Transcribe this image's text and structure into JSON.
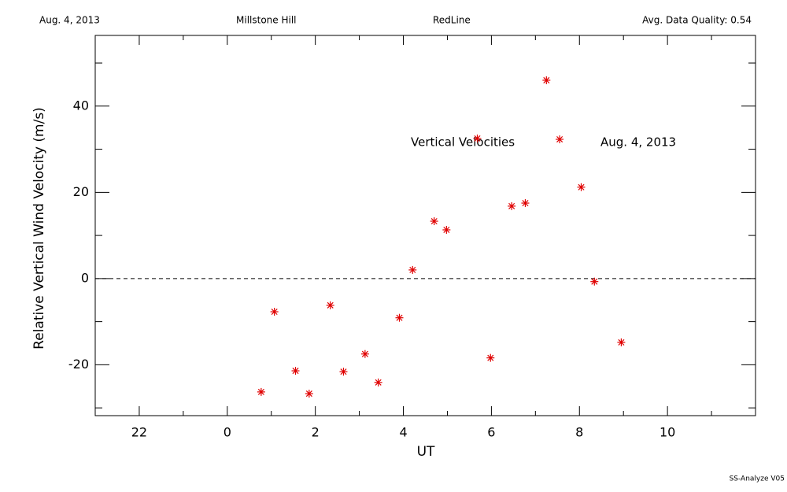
{
  "header": {
    "date": "Aug. 4, 2013",
    "site": "Millstone Hill",
    "line": "RedLine",
    "quality": "Avg. Data Quality: 0.54"
  },
  "footer": "SS-Analyze V05",
  "chart_data": {
    "type": "scatter",
    "xlabel": "UT",
    "ylabel": "Relative Vertical Wind Velocity (m/s)",
    "annotations": [
      "Vertical Velocities",
      "Aug. 4, 2013"
    ],
    "xlim": [
      -3,
      12
    ],
    "ylim": [
      -31.8,
      56.4
    ],
    "xticks": [
      {
        "value": -2,
        "label": "22"
      },
      0,
      2,
      4,
      6,
      8,
      10
    ],
    "xminorticks": [
      -3,
      -1,
      1,
      3,
      5,
      7,
      9,
      11,
      12
    ],
    "yticks": [
      -20,
      0,
      20,
      40
    ],
    "yminorticks": [
      -30,
      -10,
      10,
      30,
      50
    ],
    "reference_line": 0,
    "color": "#e00000",
    "x": [
      0.77,
      1.07,
      1.55,
      1.86,
      2.34,
      2.64,
      3.13,
      3.43,
      3.91,
      4.21,
      4.7,
      4.98,
      5.68,
      5.98,
      6.46,
      6.77,
      7.25,
      7.55,
      8.04,
      8.34,
      8.95
    ],
    "values": [
      -26.3,
      -7.7,
      -21.4,
      -26.7,
      -6.2,
      -21.6,
      -17.5,
      -24.1,
      -9.1,
      2.0,
      13.3,
      11.3,
      32.5,
      -18.4,
      16.8,
      17.5,
      46.0,
      32.3,
      21.2,
      -0.7,
      -14.8
    ]
  }
}
